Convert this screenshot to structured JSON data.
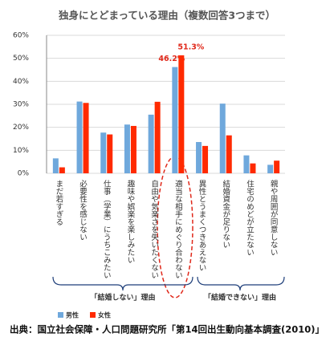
{
  "chart_data": {
    "type": "bar",
    "title": "独身にとどまっている理由（複数回答3つまで）",
    "categories": [
      "まだ若すぎる",
      "必要性を感じない",
      "仕事（学業）にうちこみたい",
      "趣味や娯楽を楽しみたい",
      "自由や気楽さを失いたくない",
      "適当な相手にめぐり合わない",
      "異性とうまくつきあえない",
      "結婚資金が足りない",
      "住宅のめどが立たない",
      "親や周囲が同意しない"
    ],
    "series": [
      {
        "name": "男性",
        "color": "#6fa8dc",
        "values": [
          6.5,
          31.2,
          17.7,
          21.2,
          25.5,
          46.2,
          13.6,
          30.3,
          7.8,
          3.7
        ],
        "value_labels": [
          null,
          null,
          null,
          null,
          null,
          "46.2%",
          null,
          null,
          null,
          null
        ]
      },
      {
        "name": "女性",
        "color": "#ff2a00",
        "values": [
          2.6,
          30.6,
          16.9,
          20.6,
          31.1,
          51.3,
          11.9,
          16.5,
          4.3,
          5.5
        ],
        "value_labels": [
          null,
          null,
          null,
          null,
          null,
          "51.3%",
          null,
          null,
          null,
          null
        ]
      }
    ],
    "ylim": [
      0,
      60
    ],
    "yticks": [
      {
        "value": 0,
        "label": "0%"
      },
      {
        "value": 10,
        "label": "10%"
      },
      {
        "value": 20,
        "label": "20%"
      },
      {
        "value": 30,
        "label": "30%"
      },
      {
        "value": 40,
        "label": "40%"
      },
      {
        "value": 50,
        "label": "50%"
      },
      {
        "value": 60,
        "label": "60%"
      }
    ],
    "grid": true,
    "legend": "bottom",
    "groups": [
      "「結婚しない」理由",
      "「結婚できない」理由"
    ],
    "source": "出典：国立社会保障・人口問題研究所「第14回出生動向基本調査(2010)」"
  }
}
